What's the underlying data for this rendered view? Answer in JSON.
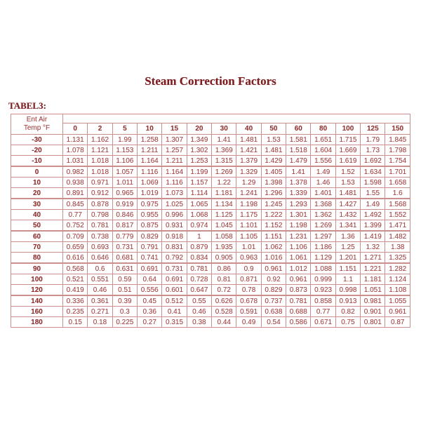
{
  "title": "Steam Correction Factors",
  "table_label": "TABEL3:",
  "colors": {
    "title_text": "#7d1c1f",
    "table_text": "#a24444",
    "row_header_text": "#8d2d2d",
    "border": "#cb908d",
    "background": "#ffffff"
  },
  "chart_data": {
    "type": "table",
    "title": "Steam Correction Factors",
    "row_header": {
      "line1": "Ent Air",
      "line2": "Temp °F"
    },
    "columns": [
      "0",
      "2",
      "5",
      "10",
      "15",
      "20",
      "30",
      "40",
      "50",
      "60",
      "80",
      "100",
      "125",
      "150"
    ],
    "rows": [
      {
        "temp": "-30",
        "values": [
          "1.131",
          "1.162",
          "1.99",
          "1.258",
          "1.307",
          "1.349",
          "1.41",
          "1.481",
          "1.53",
          "1.581",
          "1.651",
          "1.715",
          "1.79",
          "1.845"
        ]
      },
      {
        "temp": "-20",
        "values": [
          "1.078",
          "1.121",
          "1.153",
          "1.211",
          "1.257",
          "1.302",
          "1.369",
          "1.421",
          "1.481",
          "1.518",
          "1.604",
          "1.669",
          "1.73",
          "1.798"
        ]
      },
      {
        "temp": "-10",
        "values": [
          "1.031",
          "1.018",
          "1.106",
          "1.164",
          "1.211",
          "1.253",
          "1.315",
          "1.379",
          "1.429",
          "1.479",
          "1.556",
          "1.619",
          "1.692",
          "1.754"
        ]
      },
      {
        "temp": "0",
        "values": [
          "0.982",
          "1.018",
          "1.057",
          "1.116",
          "1.164",
          "1.199",
          "1.269",
          "1.329",
          "1.405",
          "1.41",
          "1.49",
          "1.52",
          "1.634",
          "1.701"
        ]
      },
      {
        "temp": "10",
        "values": [
          "0.938",
          "0.971",
          "1.011",
          "1.069",
          "1.116",
          "1.157",
          "1.22",
          "1.29",
          "1.398",
          "1.378",
          "1.46",
          "1.53",
          "1.598",
          "1.658"
        ]
      },
      {
        "temp": "20",
        "values": [
          "0.891",
          "0.912",
          "0.965",
          "1.019",
          "1.073",
          "1.114",
          "1.181",
          "1.241",
          "1.296",
          "1.339",
          "1.401",
          "1.481",
          "1.55",
          "1.6"
        ]
      },
      {
        "temp": "30",
        "values": [
          "0.845",
          "0.878",
          "0.919",
          "0.975",
          "1.025",
          "1.065",
          "1.134",
          "1.198",
          "1.245",
          "1.293",
          "1.368",
          "1.427",
          "1.49",
          "1.568"
        ]
      },
      {
        "temp": "40",
        "values": [
          "0.77",
          "0.798",
          "0.846",
          "0.955",
          "0.996",
          "1.068",
          "1.125",
          "1.175",
          "1.222",
          "1.301",
          "1.362",
          "1.432",
          "1.492",
          "1.552"
        ]
      },
      {
        "temp": "50",
        "values": [
          "0.752",
          "0.781",
          "0.817",
          "0.875",
          "0.931",
          "0.974",
          "1.045",
          "1.101",
          "1.152",
          "1.198",
          "1.269",
          "1.341",
          "1.399",
          "1.471"
        ]
      },
      {
        "temp": "60",
        "values": [
          "0.709",
          "0.738",
          "0.779",
          "0.829",
          "0.918",
          "1",
          "1.058",
          "1.105",
          "1.151",
          "1.231",
          "1.297",
          "1.36",
          "1.419",
          "1.482"
        ]
      },
      {
        "temp": "70",
        "values": [
          "0.659",
          "0.693",
          "0.731",
          "0.791",
          "0.831",
          "0.879",
          "1.935",
          "1.01",
          "1.062",
          "1.106",
          "1.186",
          "1.25",
          "1.32",
          "1.38"
        ]
      },
      {
        "temp": "80",
        "values": [
          "0.616",
          "0.646",
          "0.681",
          "0.741",
          "0.792",
          "0.834",
          "0.905",
          "0.963",
          "1.016",
          "1.061",
          "1.129",
          "1.201",
          "1.271",
          "1.325"
        ]
      },
      {
        "temp": "90",
        "values": [
          "0.568",
          "0.6",
          "0.631",
          "0.691",
          "0.731",
          "0.781",
          "0.86",
          "0.9",
          "0.961",
          "1.012",
          "1.088",
          "1.151",
          "1.221",
          "1.282"
        ]
      },
      {
        "temp": "100",
        "values": [
          "0.521",
          "0.551",
          "0.59",
          "0.64",
          "0.691",
          "0.728",
          "0.81",
          "0.871",
          "0.92",
          "0.961",
          "0.999",
          "1.1",
          "1.181",
          "1.124"
        ]
      },
      {
        "temp": "120",
        "values": [
          "0.419",
          "0.46",
          "0.51",
          "0.556",
          "0.601",
          "0.647",
          "0.72",
          "0.78",
          "0.829",
          "0.873",
          "0.923",
          "0.998",
          "1.051",
          "1.108"
        ]
      },
      {
        "temp": "140",
        "values": [
          "0.336",
          "0.361",
          "0.39",
          "0.45",
          "0.512",
          "0.55",
          "0.626",
          "0.678",
          "0.737",
          "0.781",
          "0.858",
          "0.913",
          "0.981",
          "1.055"
        ]
      },
      {
        "temp": "160",
        "values": [
          "0.235",
          "0.271",
          "0.3",
          "0.36",
          "0.41",
          "0.46",
          "0.528",
          "0.591",
          "0.638",
          "0.688",
          "0.77",
          "0.82",
          "0.901",
          "0.961"
        ]
      },
      {
        "temp": "180",
        "values": [
          "0.15",
          "0.18",
          "0.225",
          "0.27",
          "0.315",
          "0.38",
          "0.44",
          "0.49",
          "0.54",
          "0.586",
          "0.671",
          "0.75",
          "0.801",
          "0.87"
        ]
      }
    ],
    "group_breaks_after": [
      "-10",
      "20",
      "50",
      "80",
      "120"
    ]
  }
}
